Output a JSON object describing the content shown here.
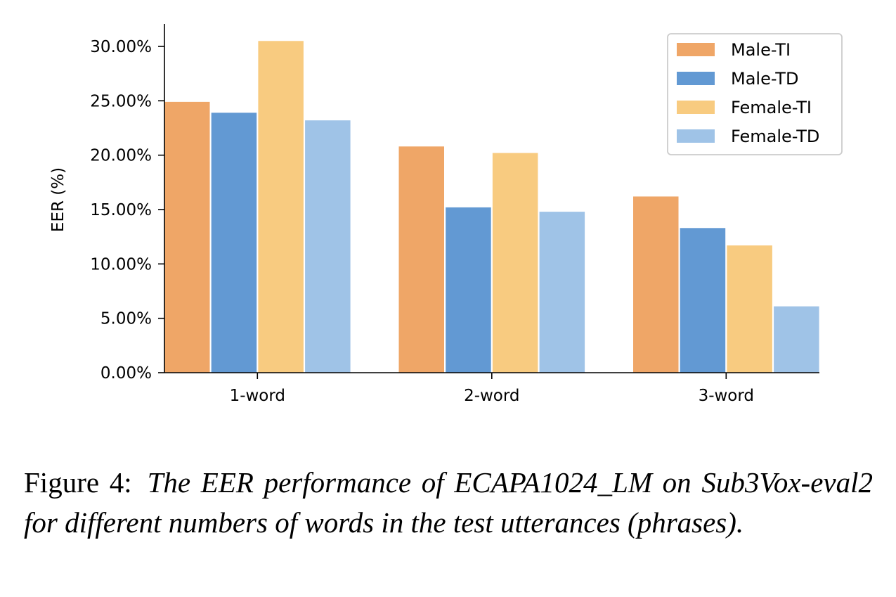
{
  "chart_data": {
    "type": "bar",
    "categories": [
      "1-word",
      "2-word",
      "3-word"
    ],
    "series": [
      {
        "name": "Male-TI",
        "values": [
          24.9,
          20.8,
          16.2
        ],
        "color": "#EFA667"
      },
      {
        "name": "Male-TD",
        "values": [
          23.9,
          15.2,
          13.3
        ],
        "color": "#6299D3"
      },
      {
        "name": "Female-TI",
        "values": [
          30.5,
          20.2,
          11.7
        ],
        "color": "#F8CB80"
      },
      {
        "name": "Female-TD",
        "values": [
          23.2,
          14.8,
          6.1
        ],
        "color": "#9FC3E7"
      }
    ],
    "ylabel": "EER (%)",
    "xlabel": "",
    "ylim": [
      0,
      32
    ],
    "yticks": [
      0,
      5,
      10,
      15,
      20,
      25,
      30
    ],
    "ytick_labels": [
      "0.00%",
      "5.00%",
      "10.00%",
      "15.00%",
      "20.00%",
      "25.00%",
      "30.00%"
    ],
    "legend_position": "top-right",
    "grid": false
  },
  "caption": {
    "label": "Figure 4:",
    "text": "The EER performance of ECAPA1024_LM on Sub3Vox-eval2 for different numbers of words in the test utter­ances (phrases)."
  }
}
